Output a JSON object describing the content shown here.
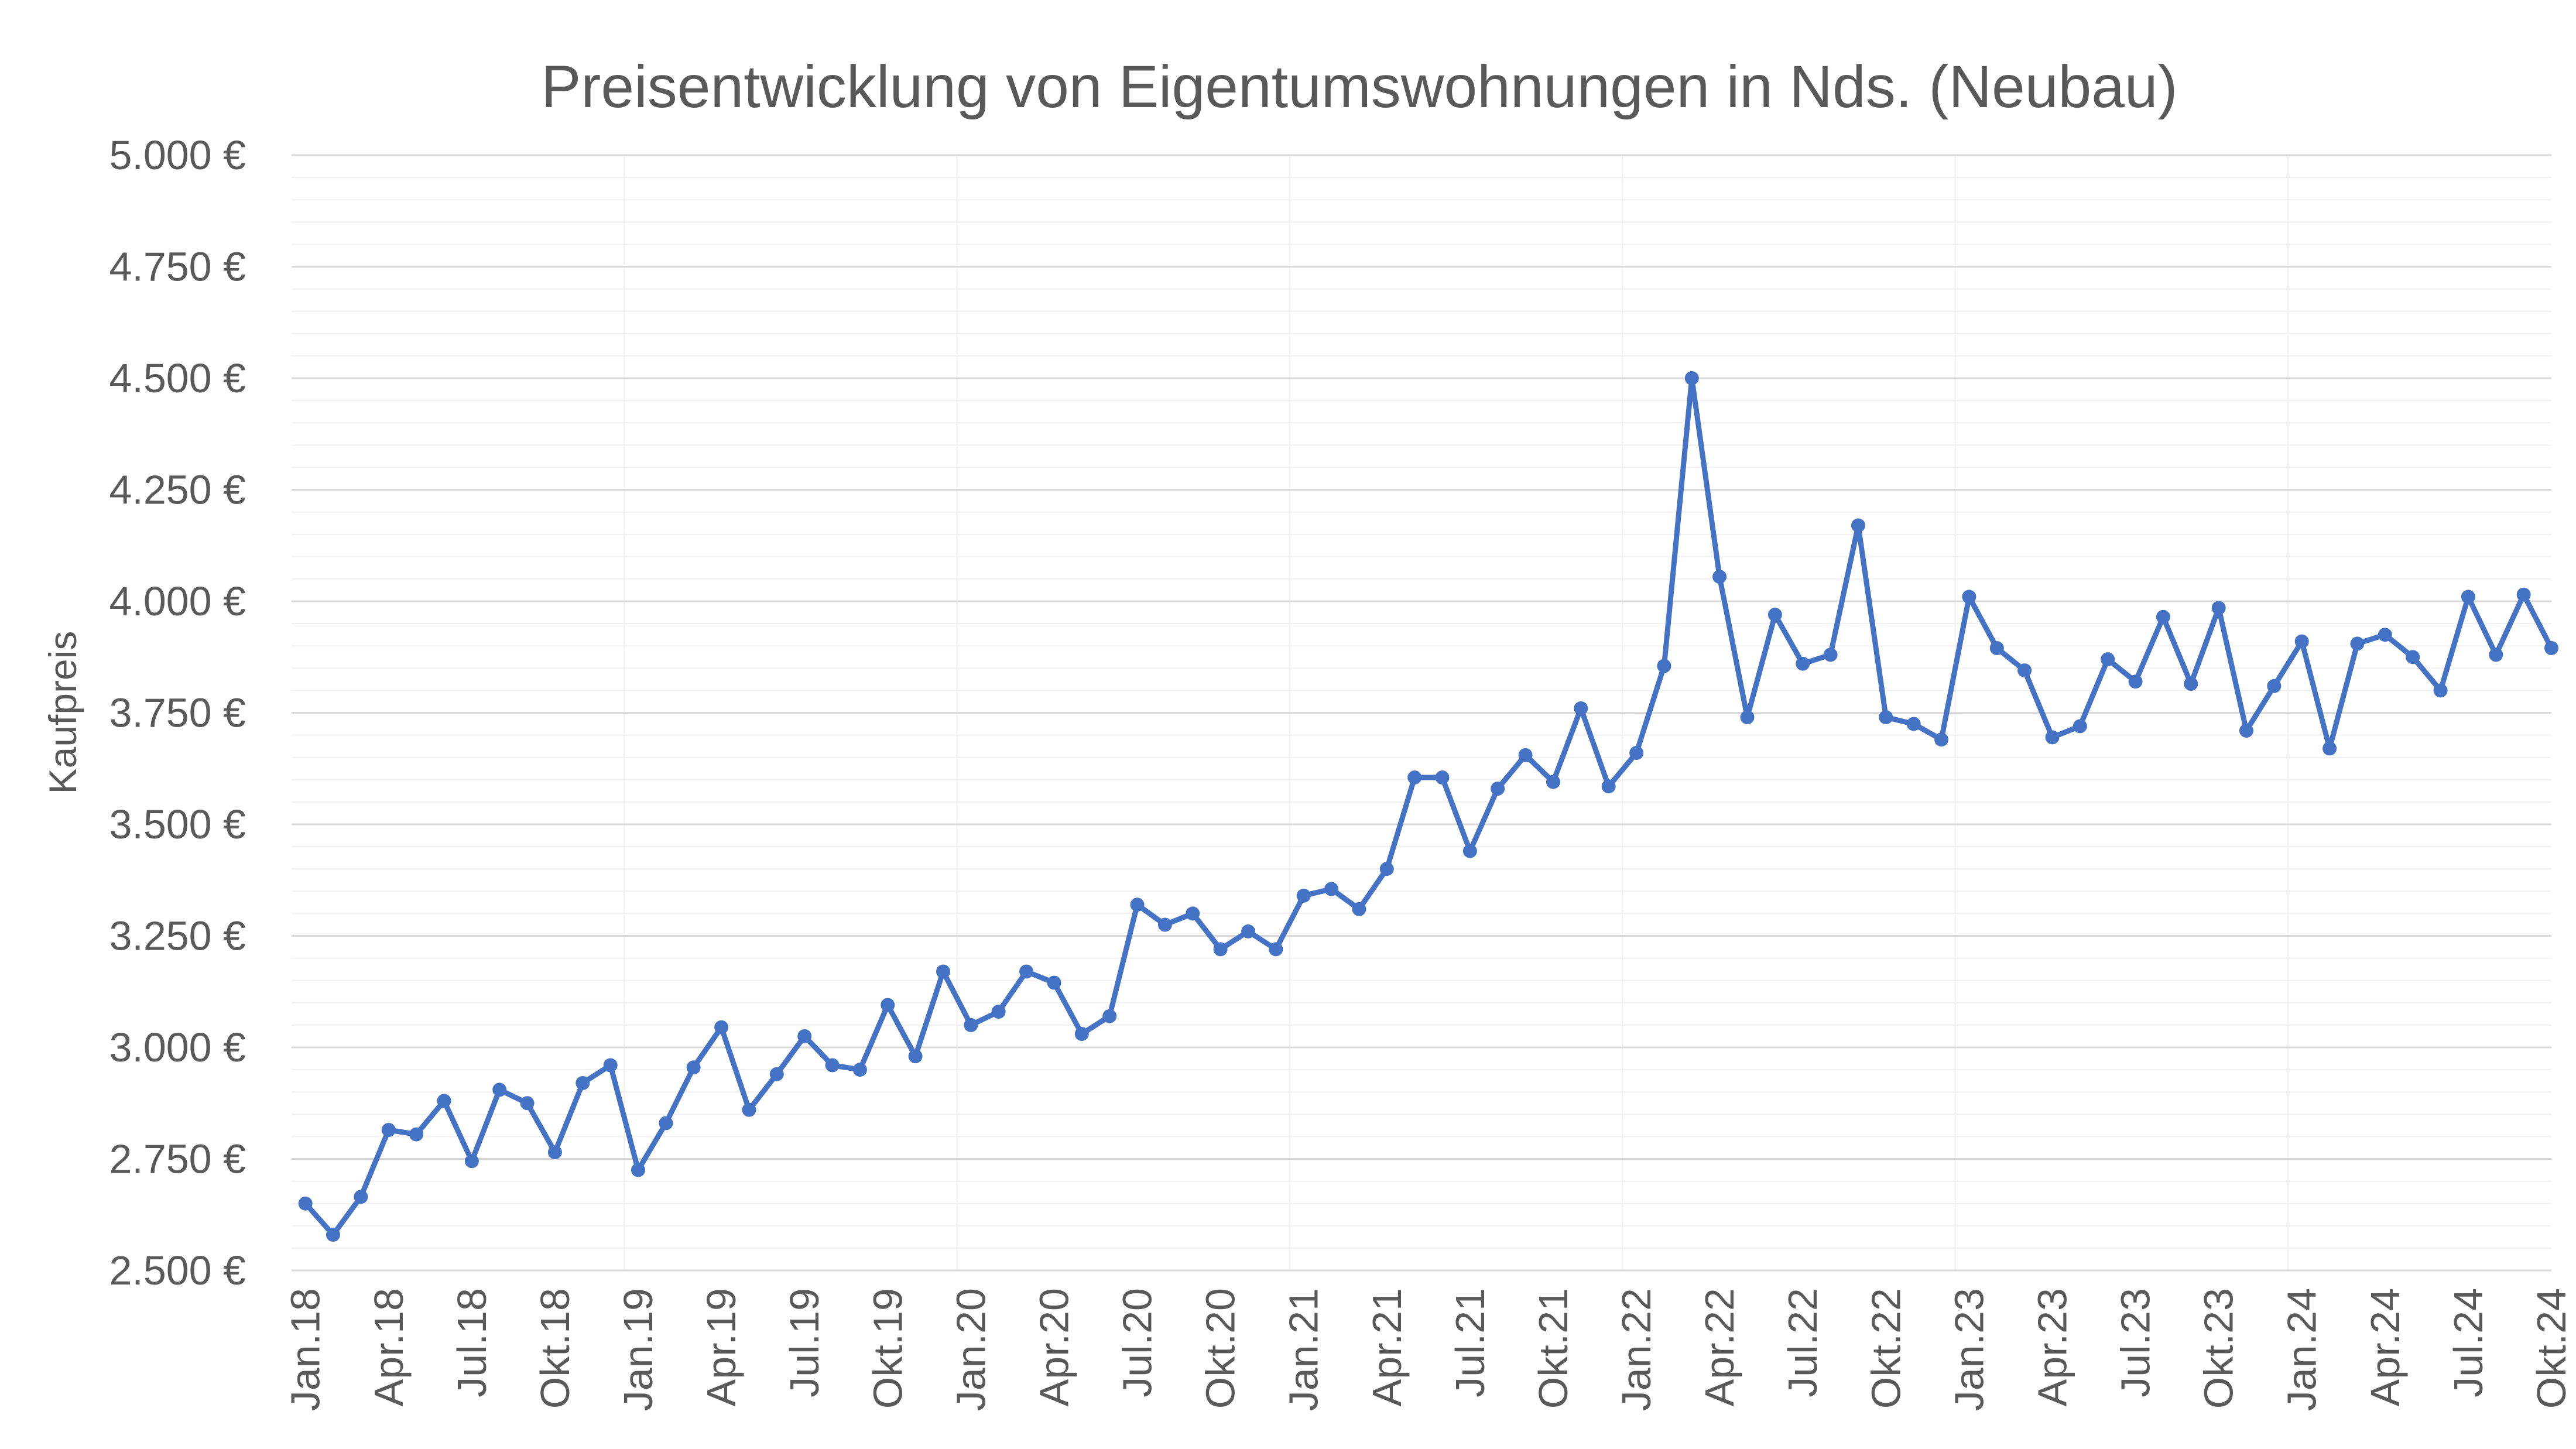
{
  "chart_data": {
    "type": "line",
    "title": "Preisentwicklung von Eigentumswohnungen in Nds. (Neubau)",
    "xlabel": "",
    "ylabel": "Kaufpreis",
    "ylim": [
      2500,
      5000
    ],
    "yticks": [
      2500,
      2750,
      3000,
      3250,
      3500,
      3750,
      4000,
      4250,
      4500,
      4750,
      5000
    ],
    "ytick_labels": [
      "2.500 €",
      "2.750 €",
      "3.000 €",
      "3.250 €",
      "3.500 €",
      "3.750 €",
      "4.000 €",
      "4.250 €",
      "4.500 €",
      "4.750 €",
      "5.000 €"
    ],
    "x_tick_labels": [
      "Jan.18",
      "Apr.18",
      "Jul.18",
      "Okt.18",
      "Jan.19",
      "Apr.19",
      "Jul.19",
      "Okt.19",
      "Jan.20",
      "Apr.20",
      "Jul.20",
      "Okt.20",
      "Jan.21",
      "Apr.21",
      "Jul.21",
      "Okt.21",
      "Jan.22",
      "Apr.22",
      "Jul.22",
      "Okt.22",
      "Jan.23",
      "Apr.23",
      "Jul.23",
      "Okt.23",
      "Jan.24",
      "Apr.24",
      "Jul.24",
      "Okt.24"
    ],
    "grid": true,
    "legend": "none",
    "color": "#4472C4",
    "series": [
      {
        "values": [
          2650,
          2580,
          2665,
          2815,
          2805,
          2880,
          2745,
          2905,
          2875,
          2765,
          2920,
          2960,
          2725,
          2830,
          2955,
          3045,
          2860,
          2940,
          3025,
          2960,
          2950,
          3095,
          2980,
          3170,
          3050,
          3080,
          3170,
          3145,
          3030,
          3070,
          3320,
          3275,
          3300,
          3220,
          3260,
          3220,
          3340,
          3355,
          3310,
          3400,
          3605,
          3605,
          3440,
          3580,
          3655,
          3595,
          3760,
          3585,
          3660,
          3855,
          4500,
          4055,
          3740,
          3970,
          3860,
          3880,
          4170,
          3740,
          3725,
          3690,
          4010,
          3895,
          3845,
          3695,
          3720,
          3870,
          3820,
          3965,
          3815,
          3985,
          3710,
          3810,
          3910,
          3670,
          3905,
          3925,
          3875,
          3800,
          4010,
          3880,
          4015,
          3895
        ]
      }
    ]
  }
}
